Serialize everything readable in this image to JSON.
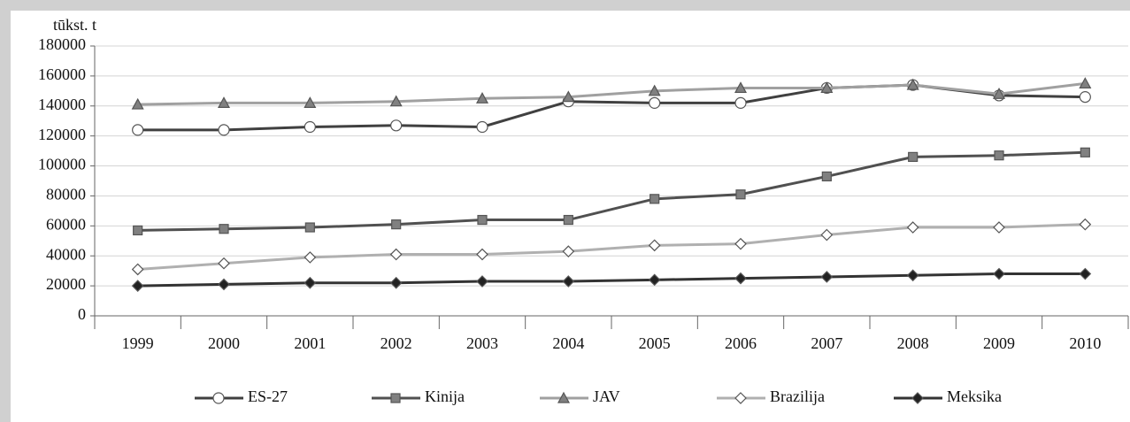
{
  "chart_data": {
    "type": "line",
    "ylabel": "tūkst. t",
    "categories": [
      "1999",
      "2000",
      "2001",
      "2002",
      "2003",
      "2004",
      "2005",
      "2006",
      "2007",
      "2008",
      "2009",
      "2010"
    ],
    "series": [
      {
        "name": "ES-27",
        "color": "#404040",
        "marker": "circle",
        "marker_fill": "#ffffff",
        "values": [
          124000,
          124000,
          126000,
          127000,
          126000,
          143000,
          142000,
          142000,
          152000,
          154000,
          147000,
          146000
        ]
      },
      {
        "name": "Kinija",
        "color": "#505050",
        "marker": "square",
        "marker_fill": "#808080",
        "values": [
          57000,
          58000,
          59000,
          61000,
          64000,
          64000,
          78000,
          81000,
          93000,
          106000,
          107000,
          109000
        ]
      },
      {
        "name": "JAV",
        "color": "#a0a0a0",
        "marker": "triangle",
        "marker_fill": "#808080",
        "values": [
          141000,
          142000,
          142000,
          143000,
          145000,
          146000,
          150000,
          152000,
          152000,
          154000,
          148000,
          155000
        ]
      },
      {
        "name": "Brazilija",
        "color": "#b0b0b0",
        "marker": "diamond",
        "marker_fill": "#ffffff",
        "values": [
          31000,
          35000,
          39000,
          41000,
          41000,
          43000,
          47000,
          48000,
          54000,
          59000,
          59000,
          61000
        ]
      },
      {
        "name": "Meksika",
        "color": "#333333",
        "marker": "diamond",
        "marker_fill": "#222222",
        "values": [
          20000,
          21000,
          22000,
          22000,
          23000,
          23000,
          24000,
          25000,
          26000,
          27000,
          28000,
          28000
        ]
      }
    ],
    "ylim": [
      0,
      180000
    ],
    "yticks": [
      0,
      20000,
      40000,
      60000,
      80000,
      100000,
      120000,
      140000,
      160000,
      180000
    ],
    "grid": true,
    "legend": "bottom"
  }
}
